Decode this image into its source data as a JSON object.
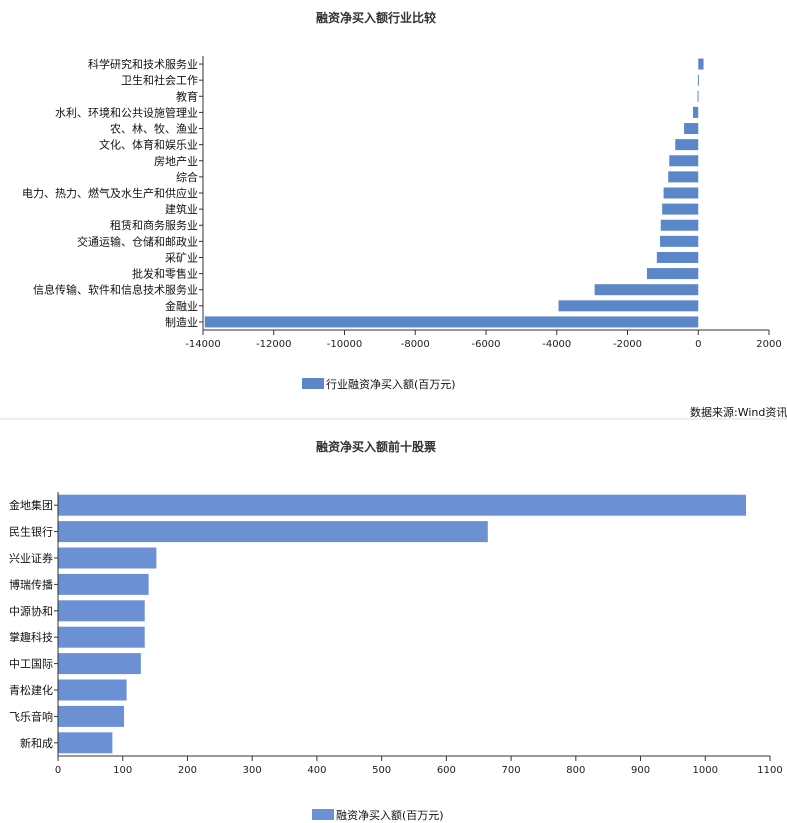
{
  "chart_data": [
    {
      "type": "bar",
      "orientation": "horizontal",
      "title": "融资净买入额行业比较",
      "categories": [
        "科学研究和技术服务业",
        "卫生和社会工作",
        "教育",
        "水利、环境和公共设施管理业",
        "农、林、牧、渔业",
        "文化、体育和娱乐业",
        "房地产业",
        "综合",
        "电力、热力、燃气及水生产和供应业",
        "建筑业",
        "租赁和商务服务业",
        "交通运输、仓储和邮政业",
        "采矿业",
        "批发和零售业",
        "信息传输、软件和信息技术服务业",
        "金融业",
        "制造业"
      ],
      "series": [
        {
          "name": "行业融资净买入额(百万元)",
          "values": [
            150,
            -10,
            -20,
            -150,
            -400,
            -650,
            -820,
            -850,
            -980,
            -1020,
            -1060,
            -1080,
            -1170,
            -1450,
            -2930,
            -3950,
            -13950
          ]
        }
      ],
      "xlim": [
        -14000,
        2000
      ],
      "xticks": [
        -14000,
        -12000,
        -10000,
        -8000,
        -6000,
        -4000,
        -2000,
        0,
        2000
      ],
      "color": "#5b87c9",
      "legend": "bottom"
    },
    {
      "type": "bar",
      "orientation": "horizontal",
      "title": "融资净买入额前十股票",
      "categories": [
        "金地集团",
        "民生银行",
        "兴业证券",
        "博瑞传播",
        "中源协和",
        "掌趣科技",
        "中工国际",
        "青松建化",
        "飞乐音响",
        "新和成"
      ],
      "series": [
        {
          "name": "融资净买入额(百万元)",
          "values": [
            1063,
            664,
            152,
            140,
            134,
            134,
            128,
            106,
            102,
            84
          ]
        }
      ],
      "xlim": [
        0,
        1100
      ],
      "xticks": [
        0,
        100,
        200,
        300,
        400,
        500,
        600,
        700,
        800,
        900,
        1000,
        1100
      ],
      "color": "#6b91d4",
      "legend": "bottom"
    }
  ],
  "source_note": "数据来源:Wind资讯"
}
